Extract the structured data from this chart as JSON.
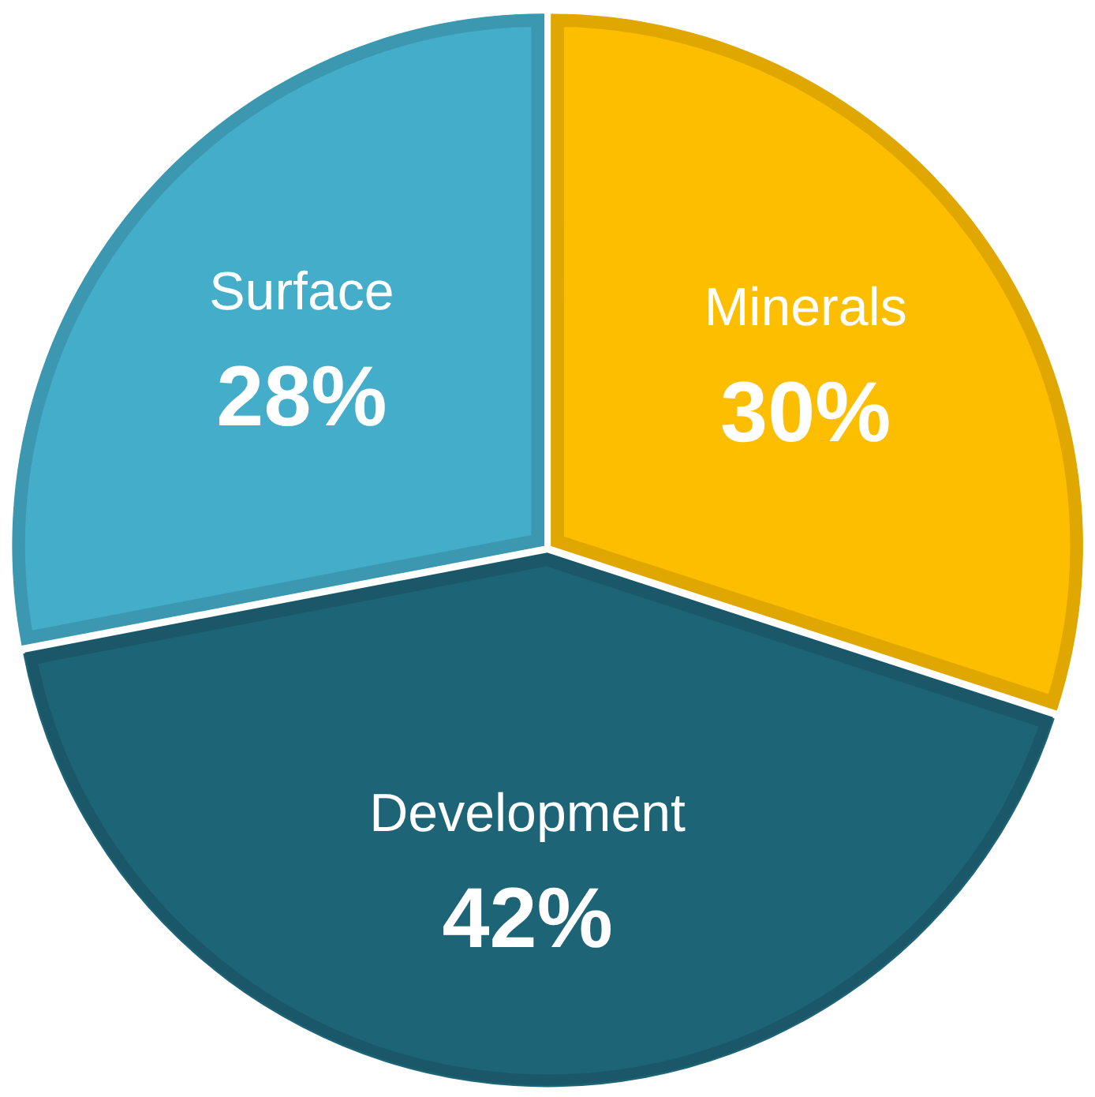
{
  "chart_data": {
    "type": "pie",
    "categories": [
      "Minerals",
      "Development",
      "Surface"
    ],
    "values": [
      30,
      42,
      28
    ],
    "colors": [
      "#fdbe00",
      "#1e6477",
      "#44adc9"
    ],
    "value_labels": [
      "30%",
      "42%",
      "28%"
    ]
  }
}
